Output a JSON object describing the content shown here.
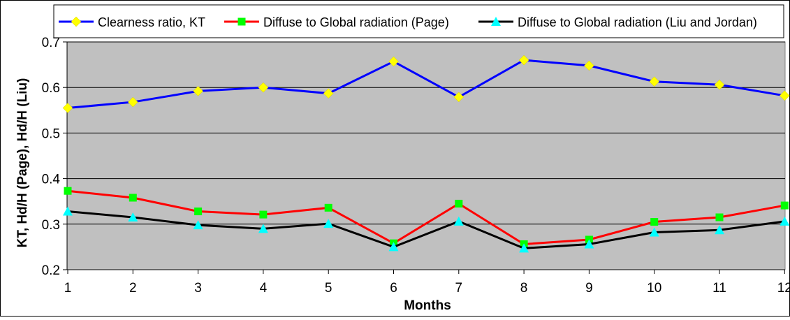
{
  "chart_data": {
    "type": "line",
    "categories": [
      "1",
      "2",
      "3",
      "4",
      "5",
      "6",
      "7",
      "8",
      "9",
      "10",
      "11",
      "12"
    ],
    "xlabel": "Months",
    "ylabel": "KT, Hd/H (Page), Hd/H (Liu)",
    "ylim": [
      0.2,
      0.7
    ],
    "yticks": [
      "0.2",
      "0.3",
      "0.4",
      "0.5",
      "0.6",
      "0.7"
    ],
    "grid": true,
    "legend_position": "top",
    "series": [
      {
        "name": "Clearness ratio, KT",
        "color": "#0000ff",
        "marker": "diamond",
        "marker_color": "#ffff00",
        "values": [
          0.555,
          0.568,
          0.592,
          0.6,
          0.587,
          0.657,
          0.579,
          0.66,
          0.648,
          0.613,
          0.606,
          0.582
        ]
      },
      {
        "name": "Diffuse to Global radiation (Page)",
        "color": "#ff0000",
        "marker": "square",
        "marker_color": "#00ff00",
        "values": [
          0.373,
          0.358,
          0.328,
          0.321,
          0.336,
          0.258,
          0.345,
          0.256,
          0.266,
          0.305,
          0.315,
          0.341
        ]
      },
      {
        "name": "Diffuse to Global radiation (Liu and Jordan)",
        "color": "#000000",
        "marker": "triangle",
        "marker_color": "#00ffff",
        "values": [
          0.328,
          0.315,
          0.298,
          0.29,
          0.301,
          0.25,
          0.306,
          0.247,
          0.256,
          0.282,
          0.287,
          0.306
        ]
      }
    ]
  }
}
